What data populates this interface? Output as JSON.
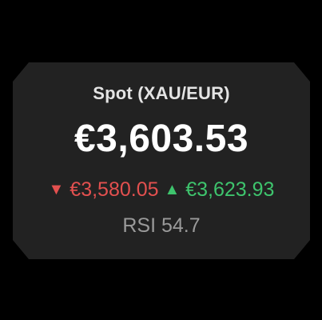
{
  "widget": {
    "title": "Spot (XAU/EUR)",
    "price": "€3,603.53",
    "low": {
      "arrow": "▼",
      "value": "€3,580.05"
    },
    "high": {
      "arrow": "▲",
      "value": "€3,623.93"
    },
    "rsi": "RSI 54.7"
  },
  "colors": {
    "background": "#000000",
    "card": "#222222",
    "low": "#e3504f",
    "high": "#3ec46d",
    "muted": "#9a9a9a"
  },
  "icons": {
    "low": "triangle-down-icon",
    "high": "triangle-up-icon"
  }
}
